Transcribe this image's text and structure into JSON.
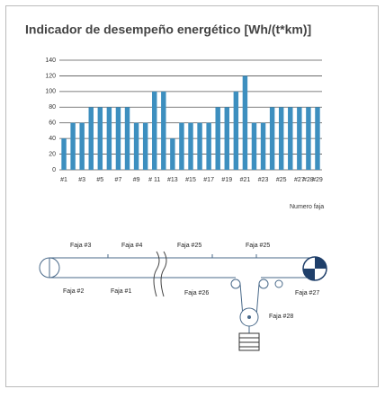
{
  "chart_data": {
    "type": "bar",
    "title": "Indicador de desempeño energético [Wh/(t*km)]",
    "categories": [
      "#1",
      null,
      "#3",
      null,
      "#5",
      null,
      "#7",
      null,
      "#9",
      null,
      "# 11",
      null,
      "#13",
      null,
      "#15",
      null,
      "#17",
      null,
      "#19",
      null,
      "#21",
      null,
      "#23",
      null,
      "#25",
      null,
      "#27",
      "#28",
      "#29"
    ],
    "values": [
      40,
      60,
      60,
      80,
      80,
      80,
      80,
      80,
      60,
      60,
      100,
      100,
      40,
      60,
      60,
      60,
      60,
      80,
      80,
      100,
      120,
      60,
      60,
      80,
      80,
      80,
      80,
      80,
      80
    ],
    "color": "#3d8fbf",
    "ylim": [
      0,
      140
    ],
    "yticks": [
      0,
      20,
      40,
      60,
      80,
      100,
      120,
      140
    ],
    "grid": true,
    "x_label": "Numero faja"
  },
  "diagram": {
    "labels": [
      "Faja #3",
      "Faja #4",
      "Faja #25",
      "Faja #25",
      "Faja #2",
      "Faja #1",
      "Faja #26",
      "Faja #27",
      "Faja #28"
    ]
  }
}
